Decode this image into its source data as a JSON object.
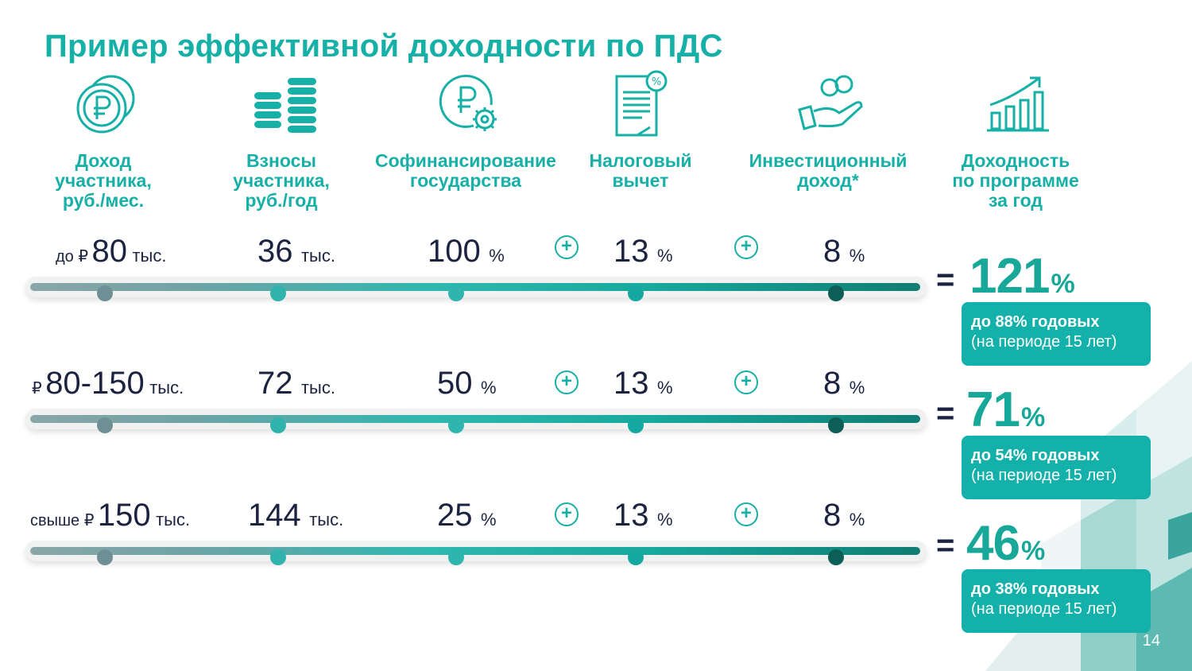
{
  "title": "Пример эффективной доходности по ПДС",
  "page_number": "14",
  "colors": {
    "accent": "#17b0a7",
    "dark_text": "#1c2340",
    "badge": "#14b0aa",
    "result": "#17a89a"
  },
  "columns": [
    {
      "icon": "ruble-coins-icon",
      "lines": [
        "Доход",
        "участника,",
        "руб./мес."
      ]
    },
    {
      "icon": "coin-stacks-icon",
      "lines": [
        "Взносы",
        "участника,",
        "руб./год"
      ]
    },
    {
      "icon": "ruble-gear-icon",
      "lines": [
        "Софинансирование",
        "государства"
      ]
    },
    {
      "icon": "tax-document-icon",
      "lines": [
        "Налоговый",
        "вычет"
      ]
    },
    {
      "icon": "hand-coins-icon",
      "lines": [
        "Инвестиционный",
        "доход*"
      ]
    },
    {
      "icon": "growth-chart-icon",
      "lines": [
        "Доходность",
        "по программе",
        "за год"
      ]
    }
  ],
  "plus_symbol": "+",
  "equals_symbol": "=",
  "rows": [
    {
      "income": {
        "prefix": "до ₽",
        "value": "80",
        "unit": "тыс."
      },
      "contribution": {
        "value": "36",
        "unit": "тыс."
      },
      "cofinancing": {
        "value": "100",
        "unit": "%"
      },
      "tax": {
        "value": "13",
        "unit": "%"
      },
      "invest": {
        "value": "8",
        "unit": "%"
      },
      "result": {
        "value": "121",
        "unit": "%"
      },
      "badge": {
        "line1": "до 88% годовых",
        "line2": "(на периоде 15 лет)"
      }
    },
    {
      "income": {
        "prefix": "₽",
        "value": "80-150",
        "unit": "тыс."
      },
      "contribution": {
        "value": "72",
        "unit": "тыс."
      },
      "cofinancing": {
        "value": "50",
        "unit": "%"
      },
      "tax": {
        "value": "13",
        "unit": "%"
      },
      "invest": {
        "value": "8",
        "unit": "%"
      },
      "result": {
        "value": "71",
        "unit": "%"
      },
      "badge": {
        "line1": "до 54% годовых",
        "line2": "(на периоде 15 лет)"
      }
    },
    {
      "income": {
        "prefix": "свыше ₽",
        "value": "150",
        "unit": "тыс."
      },
      "contribution": {
        "value": "144",
        "unit": "тыс."
      },
      "cofinancing": {
        "value": "25",
        "unit": "%"
      },
      "tax": {
        "value": "13",
        "unit": "%"
      },
      "invest": {
        "value": "8",
        "unit": "%"
      },
      "result": {
        "value": "46",
        "unit": "%"
      },
      "badge": {
        "line1": "до 38% годовых",
        "line2": "(на периоде 15 лет)"
      }
    }
  ]
}
